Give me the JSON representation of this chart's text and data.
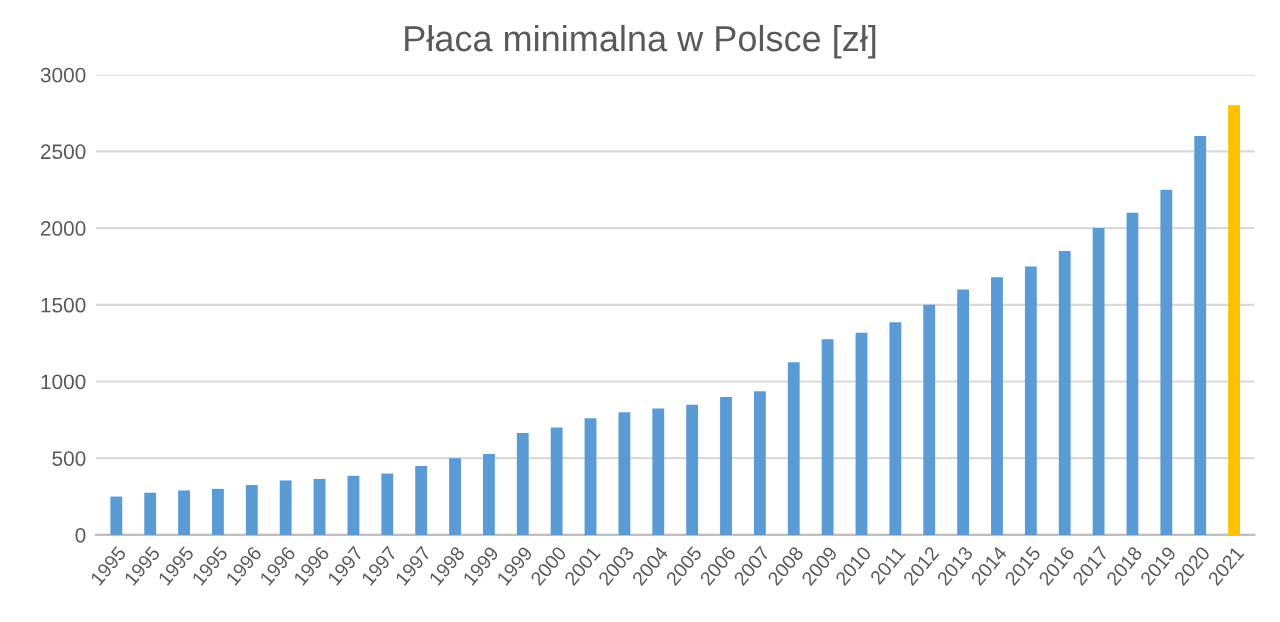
{
  "chart_data": {
    "type": "bar",
    "title": "Płaca minimalna w Polsce [zł]",
    "categories": [
      "1995",
      "1995",
      "1995",
      "1995",
      "1996",
      "1996",
      "1996",
      "1997",
      "1997",
      "1997",
      "1998",
      "1999",
      "1999",
      "2000",
      "2001",
      "2003",
      "2004",
      "2005",
      "2006",
      "2007",
      "2008",
      "2009",
      "2010",
      "2011",
      "2012",
      "2013",
      "2014",
      "2015",
      "2016",
      "2017",
      "2018",
      "2019",
      "2020",
      "2021"
    ],
    "values": [
      250,
      275,
      290,
      300,
      325,
      355,
      365,
      385,
      400,
      450,
      500,
      528,
      665,
      700,
      760,
      800,
      824,
      849,
      899,
      936,
      1126,
      1276,
      1317,
      1386,
      1500,
      1600,
      1680,
      1750,
      1850,
      2000,
      2100,
      2250,
      2600,
      2800
    ],
    "colors": [
      "#5b9bd5",
      "#5b9bd5",
      "#5b9bd5",
      "#5b9bd5",
      "#5b9bd5",
      "#5b9bd5",
      "#5b9bd5",
      "#5b9bd5",
      "#5b9bd5",
      "#5b9bd5",
      "#5b9bd5",
      "#5b9bd5",
      "#5b9bd5",
      "#5b9bd5",
      "#5b9bd5",
      "#5b9bd5",
      "#5b9bd5",
      "#5b9bd5",
      "#5b9bd5",
      "#5b9bd5",
      "#5b9bd5",
      "#5b9bd5",
      "#5b9bd5",
      "#5b9bd5",
      "#5b9bd5",
      "#5b9bd5",
      "#5b9bd5",
      "#5b9bd5",
      "#5b9bd5",
      "#5b9bd5",
      "#5b9bd5",
      "#5b9bd5",
      "#5b9bd5",
      "#ffc000"
    ],
    "ylim": [
      0,
      3000
    ],
    "yticks": [
      0,
      500,
      1000,
      1500,
      2000,
      2500,
      3000
    ],
    "grid": "y"
  }
}
